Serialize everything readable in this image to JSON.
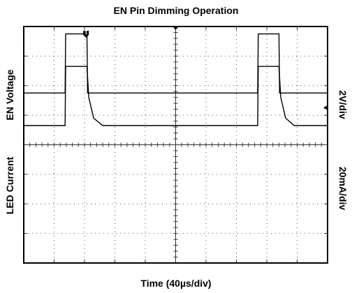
{
  "chart_data": {
    "type": "line",
    "title": "EN Pin Dimming Operation",
    "xlabel": "Time (40µs/div)",
    "x_divisions": 10,
    "y_divisions": 8,
    "grid": true,
    "trigger_marker": "T",
    "series": [
      {
        "name": "EN Voltage",
        "scale_label": "2V/div",
        "x": [
          0,
          1.36,
          1.38,
          2.08,
          2.1,
          7.7,
          7.72,
          8.4,
          8.42,
          10
        ],
        "y": [
          2.25,
          2.25,
          0.25,
          0.25,
          2.25,
          2.25,
          0.25,
          0.25,
          2.25,
          2.25
        ]
      },
      {
        "name": "LED Current",
        "scale_label": "20mA/div",
        "x": [
          0,
          1.36,
          1.38,
          2.08,
          2.14,
          2.3,
          2.6,
          7.7,
          7.72,
          8.4,
          8.46,
          8.62,
          8.9,
          10
        ],
        "y": [
          3.35,
          3.35,
          1.35,
          1.35,
          2.4,
          3.1,
          3.35,
          3.35,
          1.35,
          1.35,
          2.4,
          3.1,
          3.35,
          3.35
        ]
      }
    ]
  }
}
